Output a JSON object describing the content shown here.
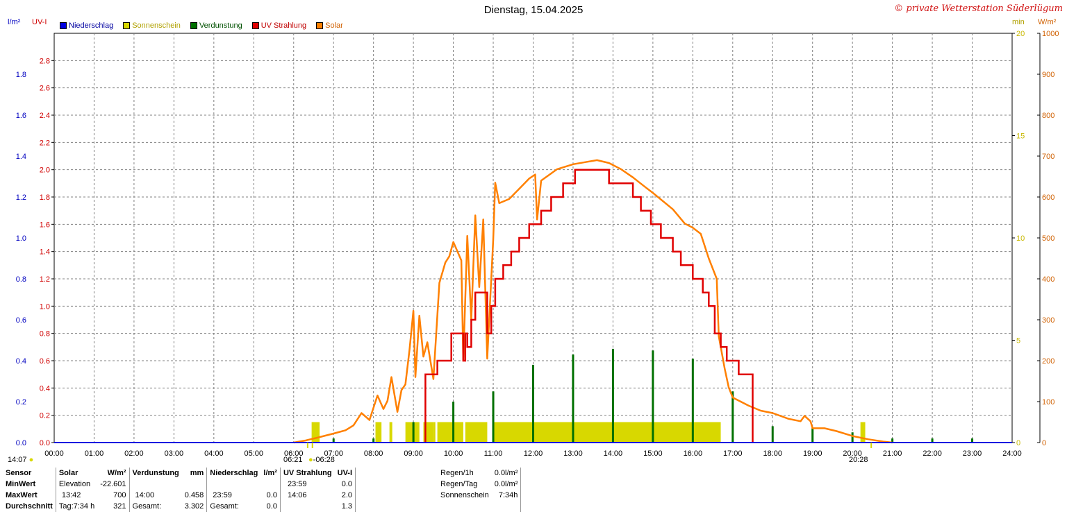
{
  "title": "Dienstag, 15.04.2025",
  "copyright": "© private Wetterstation Süderlügum",
  "axis_units": {
    "left_outer": "l/m²",
    "left_inner": "UV-I",
    "right_inner": "min",
    "right_outer": "W/m²"
  },
  "legend": [
    {
      "label": "Niederschlag",
      "color": "#0000e0"
    },
    {
      "label": "Sonnenschein",
      "color": "#d8d800"
    },
    {
      "label": "Verdunstung",
      "color": "#007000"
    },
    {
      "label": "UV Strahlung",
      "color": "#e00000"
    },
    {
      "label": "Solar",
      "color": "#ff8000"
    }
  ],
  "colors": {
    "rain": "#0000e0",
    "sun": "#d8d800",
    "evap": "#007000",
    "uv": "#e00000",
    "solar": "#ff8000",
    "grid": "#808080"
  },
  "markers": {
    "now": "14:07",
    "sunrise": "06:21",
    "sunrise_marker": "06:28",
    "sunset": "20:28"
  },
  "chart_data": {
    "type": "line",
    "x_range": [
      "00:00",
      "24:00"
    ],
    "x_ticks": [
      "00:00",
      "01:00",
      "02:00",
      "03:00",
      "04:00",
      "05:00",
      "06:00",
      "07:00",
      "08:00",
      "09:00",
      "10:00",
      "11:00",
      "12:00",
      "13:00",
      "14:00",
      "15:00",
      "16:00",
      "17:00",
      "18:00",
      "19:00",
      "20:00",
      "21:00",
      "22:00",
      "23:00",
      "24:00"
    ],
    "grid": true,
    "axes": {
      "rain": {
        "ylim": [
          0,
          2.0
        ],
        "ticks": [
          "0.0",
          "0.2",
          "0.4",
          "0.6",
          "0.8",
          "1.0",
          "1.2",
          "1.4",
          "1.6",
          "1.8"
        ]
      },
      "uv": {
        "ylim": [
          0,
          3.0
        ],
        "ticks": [
          "0.0",
          "0.2",
          "0.4",
          "0.6",
          "0.8",
          "1.0",
          "1.2",
          "1.4",
          "1.6",
          "1.8",
          "2.0",
          "2.2",
          "2.4",
          "2.6",
          "2.8"
        ]
      },
      "sunshine_min": {
        "ylim": [
          0,
          20
        ],
        "ticks": [
          "0",
          "5",
          "10",
          "15",
          "20"
        ]
      },
      "solar": {
        "ylim": [
          0,
          1000
        ],
        "ticks": [
          "0",
          "100",
          "200",
          "300",
          "400",
          "500",
          "600",
          "700",
          "800",
          "900",
          "1000"
        ]
      }
    },
    "series": [
      {
        "name": "Solar",
        "axis": "solar",
        "points": [
          [
            6.0,
            0
          ],
          [
            6.3,
            5
          ],
          [
            6.6,
            12
          ],
          [
            7.0,
            22
          ],
          [
            7.3,
            30
          ],
          [
            7.5,
            42
          ],
          [
            7.7,
            72
          ],
          [
            7.9,
            55
          ],
          [
            8.1,
            115
          ],
          [
            8.25,
            82
          ],
          [
            8.35,
            102
          ],
          [
            8.45,
            160
          ],
          [
            8.6,
            75
          ],
          [
            8.7,
            128
          ],
          [
            8.8,
            142
          ],
          [
            8.9,
            225
          ],
          [
            9.0,
            322
          ],
          [
            9.05,
            160
          ],
          [
            9.15,
            310
          ],
          [
            9.25,
            210
          ],
          [
            9.35,
            245
          ],
          [
            9.5,
            155
          ],
          [
            9.65,
            390
          ],
          [
            9.8,
            440
          ],
          [
            9.9,
            455
          ],
          [
            10.0,
            490
          ],
          [
            10.2,
            445
          ],
          [
            10.25,
            200
          ],
          [
            10.35,
            505
          ],
          [
            10.45,
            300
          ],
          [
            10.55,
            555
          ],
          [
            10.65,
            380
          ],
          [
            10.75,
            545
          ],
          [
            10.85,
            205
          ],
          [
            11.0,
            495
          ],
          [
            11.05,
            635
          ],
          [
            11.15,
            585
          ],
          [
            11.4,
            595
          ],
          [
            11.7,
            625
          ],
          [
            11.9,
            645
          ],
          [
            12.05,
            655
          ],
          [
            12.1,
            545
          ],
          [
            12.2,
            640
          ],
          [
            12.6,
            668
          ],
          [
            13.0,
            680
          ],
          [
            13.3,
            685
          ],
          [
            13.6,
            690
          ],
          [
            13.9,
            683
          ],
          [
            14.2,
            668
          ],
          [
            14.5,
            648
          ],
          [
            14.8,
            625
          ],
          [
            15.0,
            610
          ],
          [
            15.5,
            570
          ],
          [
            15.8,
            535
          ],
          [
            15.9,
            530
          ],
          [
            16.0,
            525
          ],
          [
            16.2,
            510
          ],
          [
            16.4,
            450
          ],
          [
            16.6,
            400
          ],
          [
            16.65,
            260
          ],
          [
            16.8,
            180
          ],
          [
            16.9,
            135
          ],
          [
            17.0,
            110
          ],
          [
            17.2,
            100
          ],
          [
            17.4,
            90
          ],
          [
            17.7,
            78
          ],
          [
            18.0,
            72
          ],
          [
            18.4,
            58
          ],
          [
            18.7,
            52
          ],
          [
            18.8,
            65
          ],
          [
            18.95,
            52
          ],
          [
            19.0,
            35
          ],
          [
            19.3,
            35
          ],
          [
            19.6,
            28
          ],
          [
            20.0,
            16
          ],
          [
            20.4,
            8
          ],
          [
            20.8,
            2
          ],
          [
            21.0,
            0
          ]
        ]
      },
      {
        "name": "UV Strahlung",
        "axis": "uv",
        "points": [
          [
            9.3,
            0
          ],
          [
            9.3,
            0.5
          ],
          [
            9.6,
            0.5
          ],
          [
            9.6,
            0.6
          ],
          [
            9.95,
            0.6
          ],
          [
            9.95,
            0.8
          ],
          [
            10.2,
            0.8
          ],
          [
            10.25,
            0.6
          ],
          [
            10.3,
            0.8
          ],
          [
            10.35,
            0.7
          ],
          [
            10.45,
            0.9
          ],
          [
            10.55,
            1.1
          ],
          [
            10.75,
            1.1
          ],
          [
            10.85,
            0.8
          ],
          [
            10.95,
            1.0
          ],
          [
            11.05,
            1.2
          ],
          [
            11.25,
            1.3
          ],
          [
            11.45,
            1.4
          ],
          [
            11.65,
            1.5
          ],
          [
            11.9,
            1.6
          ],
          [
            12.2,
            1.7
          ],
          [
            12.45,
            1.8
          ],
          [
            12.75,
            1.9
          ],
          [
            13.05,
            2.0
          ],
          [
            13.9,
            2.0
          ],
          [
            13.9,
            1.9
          ],
          [
            14.5,
            1.8
          ],
          [
            14.7,
            1.7
          ],
          [
            14.95,
            1.6
          ],
          [
            15.2,
            1.5
          ],
          [
            15.5,
            1.4
          ],
          [
            15.7,
            1.3
          ],
          [
            16.0,
            1.2
          ],
          [
            16.25,
            1.1
          ],
          [
            16.4,
            1.0
          ],
          [
            16.55,
            0.8
          ],
          [
            16.7,
            0.7
          ],
          [
            16.85,
            0.6
          ],
          [
            17.15,
            0.5
          ],
          [
            17.5,
            0.5
          ],
          [
            17.5,
            0.0
          ]
        ]
      },
      {
        "name": "Sonnenschein",
        "axis": "sunshine_min",
        "bars": [
          [
            6.45,
            6.65,
            1
          ],
          [
            8.05,
            8.2,
            1
          ],
          [
            8.4,
            8.47,
            1
          ],
          [
            8.8,
            9.15,
            1
          ],
          [
            9.25,
            9.5,
            1
          ],
          [
            9.5,
            9.55,
            1
          ],
          [
            9.6,
            10.25,
            1
          ],
          [
            10.3,
            10.85,
            1
          ],
          [
            11.0,
            16.7,
            1
          ],
          [
            20.2,
            20.32,
            1
          ]
        ]
      },
      {
        "name": "Verdunstung",
        "axis": "rain",
        "bars": [
          [
            7.0,
            0.02
          ],
          [
            8.0,
            0.02
          ],
          [
            9.0,
            0.1
          ],
          [
            10.0,
            0.2
          ],
          [
            11.0,
            0.25
          ],
          [
            12.0,
            0.38
          ],
          [
            13.0,
            0.43
          ],
          [
            14.0,
            0.458
          ],
          [
            15.0,
            0.45
          ],
          [
            16.0,
            0.41
          ],
          [
            17.0,
            0.25
          ],
          [
            18.0,
            0.08
          ],
          [
            19.0,
            0.07
          ],
          [
            20.0,
            0.05
          ],
          [
            21.0,
            0.02
          ],
          [
            22.0,
            0.02
          ],
          [
            23.0,
            0.02
          ]
        ]
      },
      {
        "name": "Niederschlag",
        "axis": "rain",
        "bars": []
      }
    ]
  },
  "stats": {
    "headers": {
      "sensor": "Sensor",
      "solar": "Solar",
      "solar_unit": "W/m²",
      "evap": "Verdunstung",
      "evap_unit": "mm",
      "rain": "Niederschlag",
      "rain_unit": "l/m²",
      "uv": "UV Strahlung",
      "uv_unit": "UV-I"
    },
    "rows": [
      {
        "label": "MinWert",
        "solar_t": "Elevation",
        "solar_v": "-22.601",
        "evap_t": "",
        "evap_v": "",
        "rain_t": "",
        "rain_v": "",
        "uv_t": "23:59",
        "uv_v": "0.0"
      },
      {
        "label": "MaxWert",
        "solar_t": "13:42",
        "solar_v": "700",
        "evap_t": "14:00",
        "evap_v": "0.458",
        "rain_t": "23:59",
        "rain_v": "0.0",
        "uv_t": "14:06",
        "uv_v": "2.0"
      },
      {
        "label": "Durchschnitt",
        "solar_t": "Tag:7:34 h",
        "solar_v": "321",
        "evap_t": "Gesamt:",
        "evap_v": "3.302",
        "rain_t": "Gesamt:",
        "rain_v": "0.0",
        "uv_t": "",
        "uv_v": "1.3"
      }
    ],
    "extra": [
      {
        "label": "Regen/1h",
        "value": "0.0l/m²"
      },
      {
        "label": "Regen/Tag",
        "value": "0.0l/m²"
      },
      {
        "label": "Sonnenschein",
        "value": "7:34h"
      }
    ]
  }
}
